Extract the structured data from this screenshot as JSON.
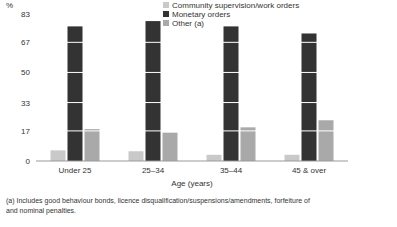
{
  "chart_data": {
    "type": "bar",
    "y_label": "%",
    "x_label": "Age (years)",
    "categories": [
      "Under 25",
      "25–34",
      "35–44",
      "45 & over"
    ],
    "series": [
      {
        "name": "Community supervision/work orders",
        "color": "#c9c9c9",
        "values": [
          6,
          5.5,
          3.5,
          3.5
        ]
      },
      {
        "name": "Monetary orders",
        "color": "#333333",
        "values": [
          76,
          79,
          76,
          72
        ]
      },
      {
        "name": "Other (a)",
        "color": "#a9a9a9",
        "values": [
          18,
          16,
          19,
          23
        ]
      }
    ],
    "ylim": [
      0,
      83
    ],
    "yticks": [
      0,
      17,
      33,
      50,
      67,
      83
    ],
    "grid": true,
    "legend": "top",
    "annotations": [
      "(a) Includes good behaviour bonds, licence disqualification/suspensions/amendments, forfeiture of",
      "and nominal penalties."
    ]
  }
}
